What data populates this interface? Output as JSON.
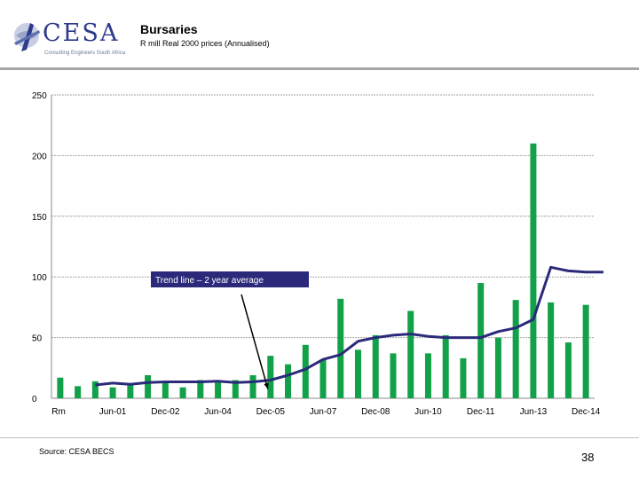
{
  "header": {
    "logo_text": "CESA",
    "logo_tagline": "Consulting Engineers South Africa",
    "title": "Bursaries",
    "subtitle": "R mill Real 2000 prices (Annualised)"
  },
  "footer": {
    "source": "Source: CESA BECS",
    "page_number": "38"
  },
  "colors": {
    "bar": "#12a148",
    "trend": "#2b2a7a",
    "callout_bg": "#2b2a7a",
    "grid": "#a6a6a6"
  },
  "chart_data": {
    "type": "bar",
    "title": "Bursaries",
    "ylabel": "R mill Real 2000 prices (Annualised)",
    "ylim": [
      0,
      250
    ],
    "yticks": [
      0,
      50,
      100,
      150,
      200,
      250
    ],
    "xtick_labels": [
      "Rm",
      "Jun-01",
      "Dec-02",
      "Jun-04",
      "Dec-05",
      "Jun-07",
      "Dec-08",
      "Jun-10",
      "Dec-11",
      "Jun-13",
      "Dec-14"
    ],
    "grid": true,
    "series": [
      {
        "name": "Bursaries",
        "type": "bar",
        "values": [
          17,
          10,
          14,
          9,
          11,
          19,
          13,
          9,
          15,
          13,
          15,
          19,
          35,
          28,
          44,
          32,
          82,
          40,
          52,
          37,
          72,
          37,
          52,
          33,
          95,
          50,
          81,
          210,
          79,
          46,
          77
        ]
      },
      {
        "name": "Trend line – 2 year average",
        "type": "line",
        "start_index": 2,
        "values": [
          11,
          12.5,
          11.5,
          13,
          13.5,
          13.5,
          13.5,
          14,
          13,
          13.5,
          15,
          19,
          24,
          32,
          36,
          47,
          50,
          52,
          53,
          51,
          50,
          50,
          50,
          55,
          58,
          65,
          108,
          105,
          104,
          104
        ]
      }
    ],
    "annotation": {
      "text": "Trend line – 2 year average",
      "points_to_index": 12
    }
  }
}
